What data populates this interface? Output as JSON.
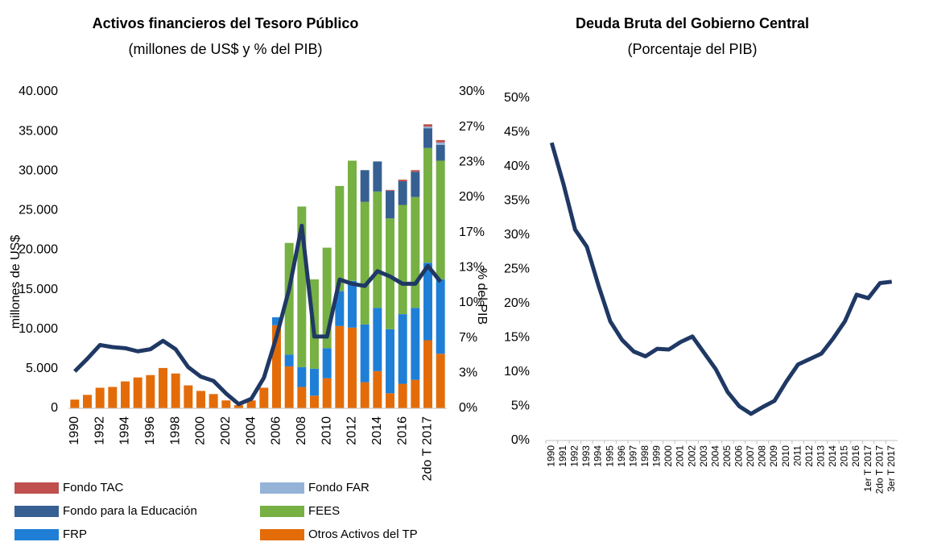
{
  "chart_data": [
    {
      "type": "stacked-bar-line",
      "title": "Activos financieros del Tesoro Público",
      "subtitle": "(millones de US$ y % del PIB)",
      "y_label": "millones de US$",
      "y2_label": "% del PIB",
      "categories": [
        "1990",
        null,
        "1992",
        null,
        "1994",
        null,
        "1996",
        null,
        "1998",
        null,
        "2000",
        null,
        "2002",
        null,
        "2004",
        null,
        "2006",
        null,
        "2008",
        null,
        "2010",
        null,
        "2012",
        null,
        "2014",
        null,
        "2016",
        null,
        "2do T 2017",
        null
      ],
      "series": [
        {
          "name": "Fondo TAC",
          "color": "#c0504d",
          "values": [
            0,
            0,
            0,
            0,
            0,
            0,
            0,
            0,
            0,
            0,
            0,
            0,
            0,
            0,
            0,
            0,
            0,
            0,
            0,
            0,
            0,
            0,
            0,
            0,
            0,
            100,
            200,
            200,
            300,
            300
          ]
        },
        {
          "name": "Fondo FAR",
          "color": "#95b3d7",
          "values": [
            0,
            0,
            0,
            0,
            0,
            0,
            0,
            0,
            0,
            0,
            0,
            0,
            0,
            0,
            0,
            0,
            0,
            0,
            0,
            0,
            0,
            0,
            0,
            0,
            0,
            0,
            0,
            0,
            200,
            300
          ]
        },
        {
          "name": "Fondo para la Educación",
          "color": "#366092",
          "values": [
            0,
            0,
            0,
            0,
            0,
            0,
            0,
            0,
            0,
            0,
            0,
            0,
            0,
            0,
            0,
            0,
            0,
            0,
            0,
            0,
            0,
            0,
            0,
            4000,
            3800,
            3500,
            3000,
            3200,
            2500,
            2000
          ]
        },
        {
          "name": "FEES",
          "color": "#77b043",
          "values": [
            0,
            0,
            0,
            0,
            0,
            0,
            0,
            0,
            0,
            0,
            0,
            0,
            0,
            0,
            0,
            0,
            0,
            14100,
            20300,
            11300,
            12700,
            13300,
            15200,
            15500,
            14700,
            14000,
            13800,
            14000,
            14500,
            15000
          ]
        },
        {
          "name": "FRP",
          "color": "#1f7fd6",
          "values": [
            0,
            0,
            0,
            0,
            0,
            0,
            0,
            0,
            0,
            0,
            0,
            0,
            0,
            0,
            0,
            0,
            1000,
            1500,
            2500,
            3400,
            3800,
            4400,
            5900,
            7300,
            8000,
            8100,
            8800,
            9100,
            9800,
            9400
          ]
        },
        {
          "name": "Otros Activos del TP",
          "color": "#e36c09",
          "values": [
            1100,
            1700,
            2600,
            2700,
            3400,
            3900,
            4200,
            5100,
            4400,
            2900,
            2200,
            1800,
            1000,
            400,
            1000,
            2600,
            10500,
            5300,
            2700,
            1600,
            3800,
            10400,
            10200,
            3300,
            4700,
            1900,
            3100,
            3600,
            8600,
            6900
          ]
        }
      ],
      "line": {
        "axis": "y2",
        "color": "#1f3864",
        "values": [
          3.5,
          4.7,
          6.0,
          5.8,
          5.7,
          5.4,
          5.6,
          6.4,
          5.6,
          3.9,
          3.0,
          2.6,
          1.4,
          0.4,
          0.9,
          2.9,
          6.8,
          11.3,
          17.3,
          6.8,
          6.8,
          12.2,
          11.8,
          11.6,
          13.0,
          12.5,
          11.8,
          11.8,
          13.5,
          12.0
        ]
      },
      "ylim": [
        0,
        40000
      ],
      "yticks": [
        0,
        {
          "value": 5000,
          "label": "5.000"
        },
        {
          "value": 10000,
          "label": "10.000"
        },
        {
          "value": 15000,
          "label": "15.000"
        },
        {
          "value": 20000,
          "label": "20.000"
        },
        {
          "value": 25000,
          "label": "25.000"
        },
        {
          "value": 30000,
          "label": "30.000"
        },
        {
          "value": 35000,
          "label": "35.000"
        },
        {
          "value": 40000,
          "label": "40.000"
        }
      ],
      "y2lim": [
        0,
        30
      ],
      "y2ticks": [
        {
          "value": 0,
          "label": "0%"
        },
        {
          "value": 3.333,
          "label": "3%"
        },
        {
          "value": 6.667,
          "label": "7%"
        },
        {
          "value": 10,
          "label": "10%"
        },
        {
          "value": 13.333,
          "label": "13%"
        },
        {
          "value": 16.667,
          "label": "17%"
        },
        {
          "value": 20,
          "label": "20%"
        },
        {
          "value": 23.333,
          "label": "23%"
        },
        {
          "value": 26.667,
          "label": "27%"
        },
        {
          "value": 30,
          "label": "30%"
        }
      ],
      "legend": "bottom"
    },
    {
      "type": "line",
      "title": "Deuda Bruta del Gobierno Central",
      "subtitle": "(Porcentaje del PIB)",
      "categories": [
        "1990",
        "1991",
        "1992",
        "1993",
        "1994",
        "1995",
        "1996",
        "1997",
        "1998",
        "1999",
        "2000",
        "2001",
        "2002",
        "2003",
        "2004",
        "2005",
        "2006",
        "2007",
        "2008",
        "2009",
        "2010",
        "2011",
        "2012",
        "2013",
        "2014",
        "2015",
        "2016",
        "1er T 2017",
        "2do T 2017",
        "3er T 2017"
      ],
      "color": "#1f3864",
      "values": [
        43.5,
        37.5,
        30.8,
        28.3,
        22.6,
        17.4,
        14.7,
        13.0,
        12.3,
        13.4,
        13.3,
        14.4,
        15.2,
        12.8,
        10.4,
        7.1,
        5.0,
        3.9,
        4.9,
        5.8,
        8.6,
        11.1,
        11.9,
        12.7,
        14.9,
        17.4,
        21.3,
        20.8,
        23.0,
        23.2
      ],
      "ylim": [
        0,
        50
      ],
      "yticks": [
        {
          "value": 0,
          "label": "0%"
        },
        {
          "value": 5,
          "label": "5%"
        },
        {
          "value": 10,
          "label": "10%"
        },
        {
          "value": 15,
          "label": "15%"
        },
        {
          "value": 20,
          "label": "20%"
        },
        {
          "value": 25,
          "label": "25%"
        },
        {
          "value": 30,
          "label": "30%"
        },
        {
          "value": 35,
          "label": "35%"
        },
        {
          "value": 40,
          "label": "40%"
        },
        {
          "value": 45,
          "label": "45%"
        },
        {
          "value": 50,
          "label": "50%"
        }
      ]
    }
  ]
}
